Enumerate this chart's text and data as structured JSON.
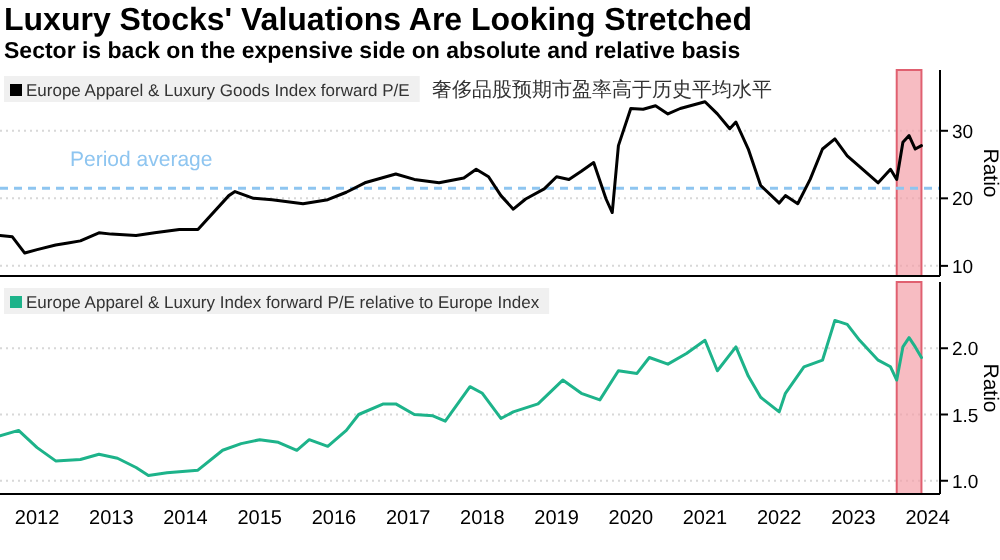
{
  "chart_data": [
    {
      "type": "line",
      "title": "Luxury Stocks' Valuations Are Looking Stretched",
      "subtitle": "Sector is back on the expensive side on absolute and relative basis",
      "ylabel": "Ratio",
      "annotations": [
        "奢侈品股预期市盈率高于历史平均水平"
      ],
      "legend": "top left",
      "grid": "y",
      "tick_labels": "y",
      "line_style": "solid",
      "marker": "none",
      "xlim": [
        "2012-01",
        "2024-09"
      ],
      "ylim": [
        8.5,
        39
      ],
      "yticks": [
        10,
        20,
        30
      ],
      "ref_lines": [
        {
          "axis": "y",
          "value": 21.5,
          "label": "Period average",
          "color": "#8ec5f0",
          "line_style": "dashed"
        }
      ],
      "bands": [
        {
          "axis": "x",
          "from": "2024-02",
          "to": "2024-06",
          "color": "#f4a0a8"
        }
      ],
      "series": [
        {
          "name": "Europe Apparel & Luxury Goods Index forward P/E",
          "color": "#000000",
          "x": [
            "2012-01",
            "2012-03",
            "2012-05",
            "2012-07",
            "2012-10",
            "2012-12",
            "2013-02",
            "2013-05",
            "2013-07",
            "2013-11",
            "2014-02",
            "2014-06",
            "2014-09",
            "2015-02",
            "2015-03",
            "2015-06",
            "2015-09",
            "2016-02",
            "2016-06",
            "2016-09",
            "2016-12",
            "2017-05",
            "2017-08",
            "2017-12",
            "2018-04",
            "2018-06",
            "2018-08",
            "2018-10",
            "2018-12",
            "2019-02",
            "2019-05",
            "2019-07",
            "2019-09",
            "2019-11",
            "2020-01",
            "2020-03",
            "2020-04",
            "2020-05",
            "2020-07",
            "2020-09",
            "2020-11",
            "2021-01",
            "2021-03",
            "2021-07",
            "2021-09",
            "2021-11",
            "2021-12",
            "2022-02",
            "2022-04",
            "2022-07",
            "2022-08",
            "2022-10",
            "2022-12",
            "2023-02",
            "2023-04",
            "2023-06",
            "2023-08",
            "2023-11",
            "2024-01",
            "2024-02",
            "2024-03",
            "2024-04",
            "2024-05",
            "2024-06"
          ],
          "values": [
            14.5,
            14.3,
            11.9,
            12.4,
            13.1,
            13.4,
            13.7,
            14.9,
            14.7,
            14.5,
            14.9,
            15.4,
            15.4,
            20.4,
            21.0,
            20.0,
            19.8,
            19.2,
            19.8,
            20.9,
            22.3,
            23.6,
            22.8,
            22.3,
            23.0,
            24.3,
            23.2,
            20.4,
            18.4,
            19.9,
            21.4,
            23.2,
            22.8,
            24.0,
            25.3,
            19.9,
            17.9,
            27.8,
            33.3,
            33.2,
            33.7,
            32.5,
            33.3,
            34.3,
            32.5,
            30.3,
            31.3,
            27.3,
            21.9,
            19.3,
            20.4,
            19.2,
            22.8,
            27.3,
            28.8,
            26.3,
            24.7,
            22.3,
            24.3,
            22.8,
            28.3,
            29.3,
            27.3,
            27.8
          ]
        }
      ]
    },
    {
      "type": "line",
      "ylabel": "Ratio",
      "legend": "top left",
      "grid": "y",
      "line_style": "solid",
      "marker": "none",
      "xlim": [
        "2012-01",
        "2024-09"
      ],
      "xticks": [
        {
          "value": "2012-07",
          "label": "2012"
        },
        {
          "value": "2013-07",
          "label": "2013"
        },
        {
          "value": "2014-07",
          "label": "2014"
        },
        {
          "value": "2015-07",
          "label": "2015"
        },
        {
          "value": "2016-07",
          "label": "2016"
        },
        {
          "value": "2017-07",
          "label": "2017"
        },
        {
          "value": "2018-07",
          "label": "2018"
        },
        {
          "value": "2019-07",
          "label": "2019"
        },
        {
          "value": "2020-07",
          "label": "2020"
        },
        {
          "value": "2021-07",
          "label": "2021"
        },
        {
          "value": "2022-07",
          "label": "2022"
        },
        {
          "value": "2023-07",
          "label": "2023"
        },
        {
          "value": "2024-07",
          "label": "2024"
        }
      ],
      "ylim": [
        0.9,
        2.5
      ],
      "yticks": [
        {
          "value": 1.0,
          "label": "1.0"
        },
        1.5,
        {
          "value": 2.0,
          "label": "2.0"
        }
      ],
      "bands": [
        {
          "axis": "x",
          "from": "2024-02",
          "to": "2024-06",
          "color": "#f4a0a8"
        }
      ],
      "series": [
        {
          "name": "Europe Apparel & Luxury Index forward P/E relative to Europe Index",
          "color": "#1db38a",
          "x": [
            "2012-01",
            "2012-04",
            "2012-07",
            "2012-10",
            "2013-02",
            "2013-05",
            "2013-08",
            "2013-11",
            "2014-01",
            "2014-04",
            "2014-09",
            "2015-01",
            "2015-04",
            "2015-07",
            "2015-10",
            "2016-01",
            "2016-03",
            "2016-06",
            "2016-09",
            "2016-11",
            "2017-03",
            "2017-05",
            "2017-08",
            "2017-11",
            "2018-01",
            "2018-05",
            "2018-07",
            "2018-10",
            "2018-12",
            "2019-04",
            "2019-08",
            "2019-11",
            "2020-02",
            "2020-05",
            "2020-08",
            "2020-10",
            "2021-01",
            "2021-04",
            "2021-07",
            "2021-09",
            "2021-12",
            "2022-02",
            "2022-04",
            "2022-07",
            "2022-08",
            "2022-11",
            "2023-02",
            "2023-04",
            "2023-06",
            "2023-08",
            "2023-11",
            "2024-01",
            "2024-02",
            "2024-03",
            "2024-04",
            "2024-05",
            "2024-06"
          ],
          "values": [
            1.34,
            1.38,
            1.25,
            1.15,
            1.16,
            1.2,
            1.17,
            1.1,
            1.04,
            1.06,
            1.08,
            1.23,
            1.28,
            1.31,
            1.29,
            1.23,
            1.31,
            1.26,
            1.38,
            1.5,
            1.58,
            1.58,
            1.5,
            1.49,
            1.45,
            1.71,
            1.66,
            1.47,
            1.52,
            1.58,
            1.76,
            1.66,
            1.61,
            1.83,
            1.81,
            1.93,
            1.88,
            1.96,
            2.06,
            1.83,
            2.01,
            1.79,
            1.63,
            1.52,
            1.66,
            1.86,
            1.91,
            2.21,
            2.18,
            2.06,
            1.91,
            1.86,
            1.76,
            2.01,
            2.08,
            2.01,
            1.93
          ]
        }
      ]
    }
  ]
}
